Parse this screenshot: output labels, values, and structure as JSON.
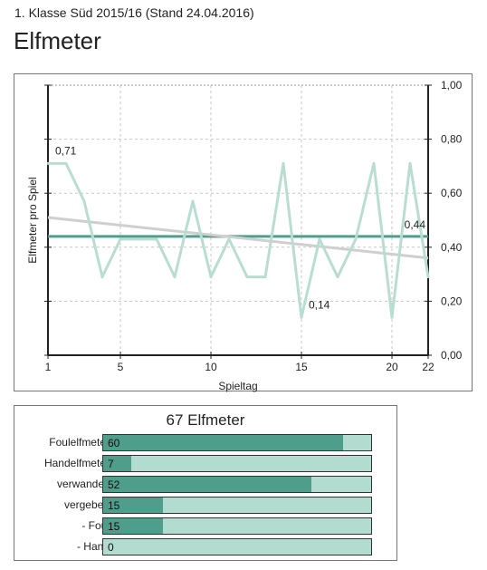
{
  "header": {
    "subtitle": "1. Klasse Süd 2015/16 (Stand 24.04.2016)",
    "title": "Elfmeter"
  },
  "chart_data": {
    "type": "line",
    "ylabel": "Elfmeter pro Spiel",
    "xlabel": "Spieltag",
    "xlim": [
      1,
      22
    ],
    "ylim": [
      0,
      1
    ],
    "x_ticks": [
      1,
      5,
      10,
      15,
      20,
      22
    ],
    "y_ticks": [
      "0,00",
      "0,20",
      "0,40",
      "0,60",
      "0,80",
      "1,00"
    ],
    "y_tick_values": [
      0,
      0.2,
      0.4,
      0.6,
      0.8,
      1.0
    ],
    "grid": true,
    "series": [
      {
        "values": [
          0.71,
          0.71,
          0.57,
          0.29,
          0.43,
          0.43,
          0.43,
          0.29,
          0.57,
          0.29,
          0.43,
          0.29,
          0.29,
          0.71,
          0.14,
          0.43,
          0.29,
          0.43,
          0.71,
          0.14,
          0.71,
          0.29
        ],
        "color": "#b9ddd3"
      }
    ],
    "average": {
      "value": 0.44,
      "label": "0,44",
      "color": "#4f9e8c"
    },
    "trend": {
      "start": 0.51,
      "end": 0.36,
      "color": "#cfcfcf"
    },
    "annotations": [
      {
        "x": 1,
        "y": 0.71,
        "label": "0,71"
      },
      {
        "x": 15,
        "y": 0.14,
        "label": "0,14"
      }
    ]
  },
  "summary": {
    "title": "67 Elfmeter",
    "max": 67,
    "fill_color": "#4f9e8c",
    "track_color": "#b3dcd1",
    "rows": [
      {
        "label": "Foulelfmeter",
        "value": 60
      },
      {
        "label": "Handelfmeter",
        "value": 7
      },
      {
        "label": "verwandelt",
        "value": 52
      },
      {
        "label": "vergeben",
        "value": 15
      },
      {
        "label": "- Foul",
        "value": 15
      },
      {
        "label": "- Hand",
        "value": 0
      }
    ]
  }
}
